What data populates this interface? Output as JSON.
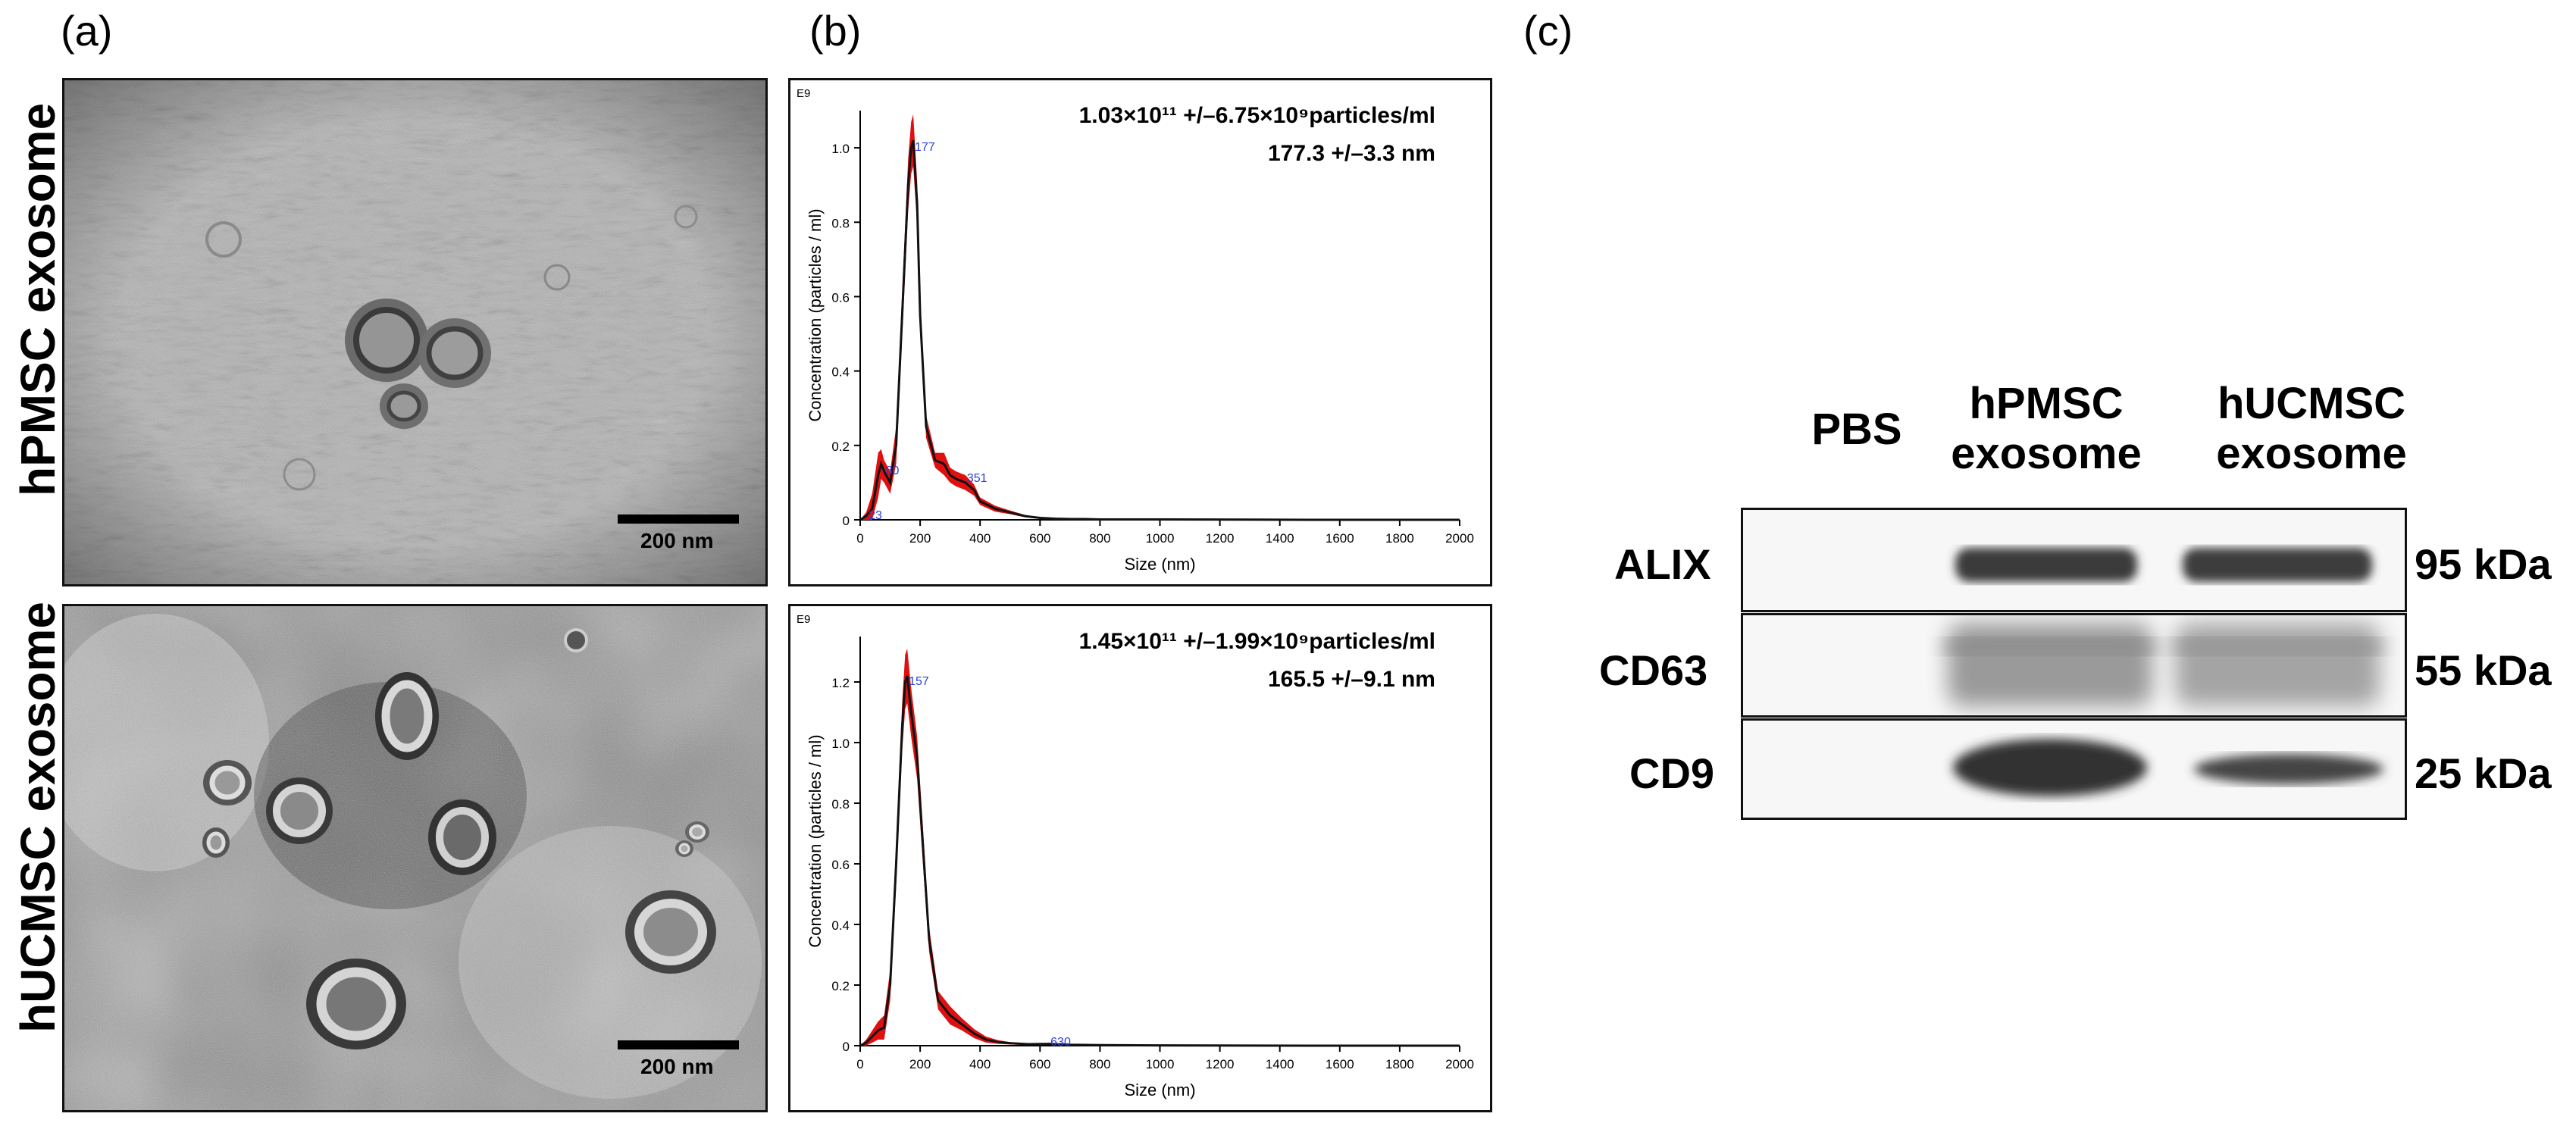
{
  "panels": {
    "a": "(a)",
    "b": "(b)",
    "c": "(c)"
  },
  "tem": {
    "row1_label": "hPMSC exosome",
    "row2_label": "hUCMSC exosome",
    "scale_bar_1": "200 nm",
    "scale_bar_2": "200 nm"
  },
  "nta": {
    "chart1_annot_line1": "1.03×10¹¹ +/–6.75×10⁹particles/ml",
    "chart1_annot_line2": "177.3 +/–3.3 nm",
    "chart2_annot_line1": "1.45×10¹¹ +/–1.99×10⁹particles/ml",
    "chart2_annot_line2": "165.5 +/–9.1 nm"
  },
  "chart_data": [
    {
      "type": "line",
      "title": "",
      "xlabel": "Size (nm)",
      "ylabel": "Concentration (particles / ml)",
      "y_multiplier": "E9",
      "xlim": [
        0,
        2000
      ],
      "ylim": [
        0,
        1.1
      ],
      "x_ticks": [
        0,
        200,
        400,
        600,
        800,
        1000,
        1200,
        1400,
        1600,
        1800,
        2000
      ],
      "y_ticks": [
        0,
        0.2,
        0.4,
        0.6,
        0.8,
        1.0
      ],
      "y_tick_labels": [
        "0",
        "0.2",
        "0.4",
        "0.6",
        "0.8",
        "1.0"
      ],
      "peak_labels": [
        {
          "x": 177,
          "y": 1.0,
          "text": "177"
        },
        {
          "x": 80,
          "y": 0.13,
          "text": "80"
        },
        {
          "x": 351,
          "y": 0.11,
          "text": "351"
        },
        {
          "x": 23,
          "y": 0.01,
          "text": "23"
        }
      ],
      "series": [
        {
          "name": "mean",
          "x": [
            0,
            20,
            40,
            60,
            70,
            80,
            100,
            120,
            140,
            160,
            170,
            177,
            190,
            200,
            220,
            250,
            280,
            300,
            320,
            351,
            380,
            400,
            450,
            500,
            550,
            600,
            650,
            700,
            750,
            800,
            1000,
            1500,
            2000
          ],
          "y": [
            0,
            0.01,
            0.03,
            0.12,
            0.15,
            0.13,
            0.1,
            0.2,
            0.55,
            0.9,
            1.0,
            1.02,
            0.85,
            0.55,
            0.25,
            0.16,
            0.15,
            0.12,
            0.11,
            0.1,
            0.08,
            0.05,
            0.03,
            0.02,
            0.01,
            0.005,
            0.003,
            0.002,
            0.002,
            0.001,
            0.001,
            0,
            0
          ]
        },
        {
          "name": "error",
          "x": [
            0,
            20,
            40,
            60,
            70,
            80,
            100,
            120,
            140,
            160,
            170,
            177,
            190,
            200,
            220,
            250,
            280,
            300,
            320,
            351,
            380,
            400,
            450,
            500,
            550,
            600,
            650,
            700,
            750,
            800,
            1000,
            1500,
            2000
          ],
          "y": [
            0,
            0.01,
            0.04,
            0.06,
            0.04,
            0.03,
            0.03,
            0.05,
            0.06,
            0.07,
            0.07,
            0.07,
            0.06,
            0.05,
            0.03,
            0.02,
            0.03,
            0.02,
            0.02,
            0.02,
            0.015,
            0.01,
            0.008,
            0.005,
            0.003,
            0.002,
            0.002,
            0.002,
            0.002,
            0.001,
            0.001,
            0,
            0
          ]
        }
      ]
    },
    {
      "type": "line",
      "title": "",
      "xlabel": "Size (nm)",
      "ylabel": "Concentration (particles / ml)",
      "y_multiplier": "E9",
      "xlim": [
        0,
        2000
      ],
      "ylim": [
        0,
        1.35
      ],
      "x_ticks": [
        0,
        200,
        400,
        600,
        800,
        1000,
        1200,
        1400,
        1600,
        1800,
        2000
      ],
      "y_ticks": [
        0,
        0.2,
        0.4,
        0.6,
        0.8,
        1.0,
        1.2
      ],
      "y_tick_labels": [
        "0",
        "0.2",
        "0.4",
        "0.6",
        "0.8",
        "1.0",
        "1.2"
      ],
      "peak_labels": [
        {
          "x": 157,
          "y": 1.2,
          "text": "157"
        },
        {
          "x": 630,
          "y": 0.01,
          "text": "630"
        }
      ],
      "series": [
        {
          "name": "mean",
          "x": [
            0,
            20,
            40,
            60,
            80,
            100,
            120,
            140,
            150,
            157,
            170,
            190,
            210,
            230,
            260,
            300,
            340,
            380,
            420,
            460,
            500,
            560,
            630,
            700,
            800,
            1000,
            1500,
            2000
          ],
          "y": [
            0,
            0.01,
            0.03,
            0.05,
            0.06,
            0.2,
            0.6,
            1.05,
            1.2,
            1.22,
            1.1,
            0.95,
            0.65,
            0.35,
            0.15,
            0.1,
            0.07,
            0.04,
            0.02,
            0.012,
            0.008,
            0.005,
            0.006,
            0.003,
            0.002,
            0.001,
            0,
            0
          ]
        },
        {
          "name": "error",
          "x": [
            0,
            20,
            40,
            60,
            80,
            100,
            120,
            140,
            150,
            157,
            170,
            190,
            210,
            230,
            260,
            300,
            340,
            380,
            420,
            460,
            500,
            560,
            630,
            700,
            800,
            1000,
            1500,
            2000
          ],
          "y": [
            0,
            0.01,
            0.02,
            0.03,
            0.04,
            0.05,
            0.07,
            0.08,
            0.09,
            0.09,
            0.08,
            0.07,
            0.06,
            0.04,
            0.03,
            0.03,
            0.02,
            0.015,
            0.01,
            0.006,
            0.004,
            0.003,
            0.003,
            0.002,
            0.001,
            0.001,
            0,
            0
          ]
        }
      ]
    }
  ],
  "western": {
    "lanes": [
      "PBS",
      "hPMSC\nexosome",
      "hUCMSC\nexosome"
    ],
    "lane_1": "PBS",
    "lane_2_line1": "hPMSC",
    "lane_2_line2": "exosome",
    "lane_3_line1": "hUCMSC",
    "lane_3_line2": "exosome",
    "proteins": [
      "ALIX",
      "CD63",
      "CD9"
    ],
    "sizes": [
      "95 kDa",
      "55 kDa",
      "25 kDa"
    ]
  }
}
